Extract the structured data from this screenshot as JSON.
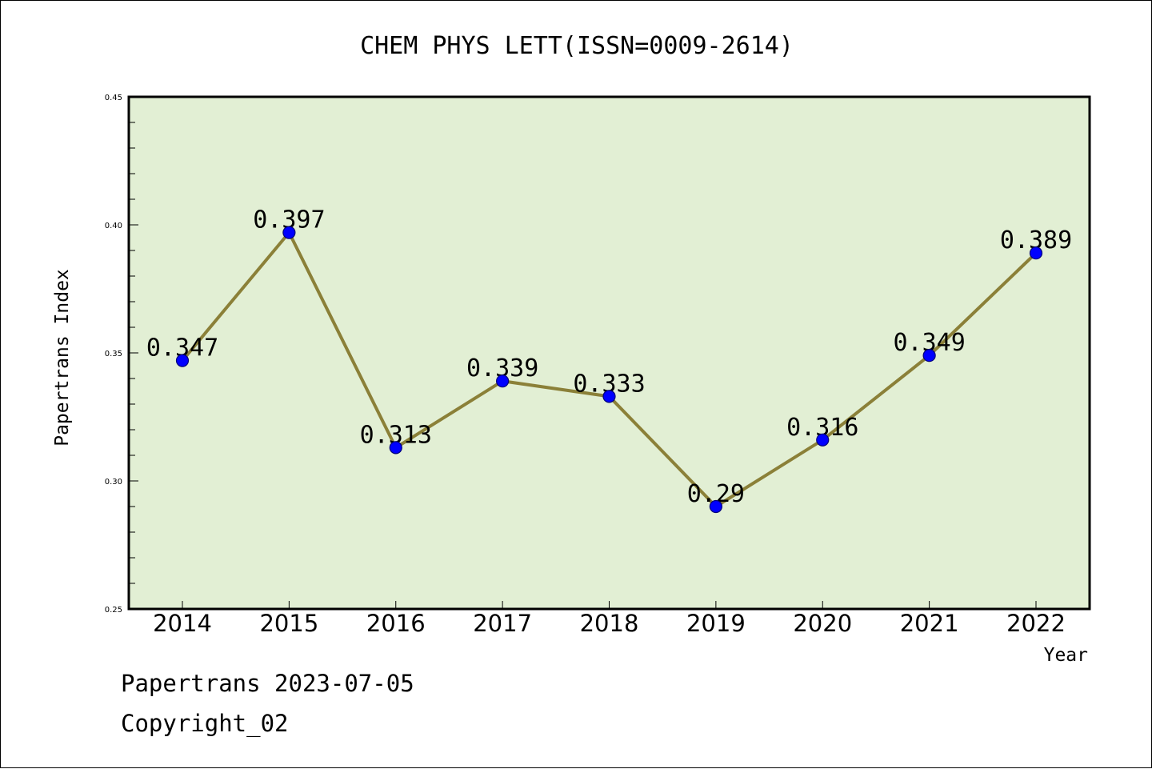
{
  "chart_data": {
    "type": "line",
    "title": "CHEM PHYS LETT(ISSN=0009-2614)",
    "xlabel": "Year",
    "ylabel": "Papertrans Index",
    "categories": [
      "2014",
      "2015",
      "2016",
      "2017",
      "2018",
      "2019",
      "2020",
      "2021",
      "2022"
    ],
    "series": [
      {
        "values": [
          0.347,
          0.397,
          0.313,
          0.339,
          0.333,
          0.29,
          0.316,
          0.349,
          0.389
        ]
      }
    ],
    "data_labels": [
      "0.347",
      "0.397",
      "0.313",
      "0.339",
      "0.333",
      "0.29",
      "0.316",
      "0.349",
      "0.389"
    ],
    "ylim": [
      0.25,
      0.45
    ],
    "yticks": [
      "0.25",
      "0.30",
      "0.35",
      "0.40",
      "0.45"
    ],
    "grid": false,
    "legend": "none",
    "colors": {
      "plot_background": "#e2efd4",
      "line": "#8b8038",
      "marker": "#0000ff",
      "marker_edge": "#00007a"
    }
  },
  "footer": {
    "line1": "Papertrans 2023-07-05",
    "line2": "Copyright_02"
  }
}
